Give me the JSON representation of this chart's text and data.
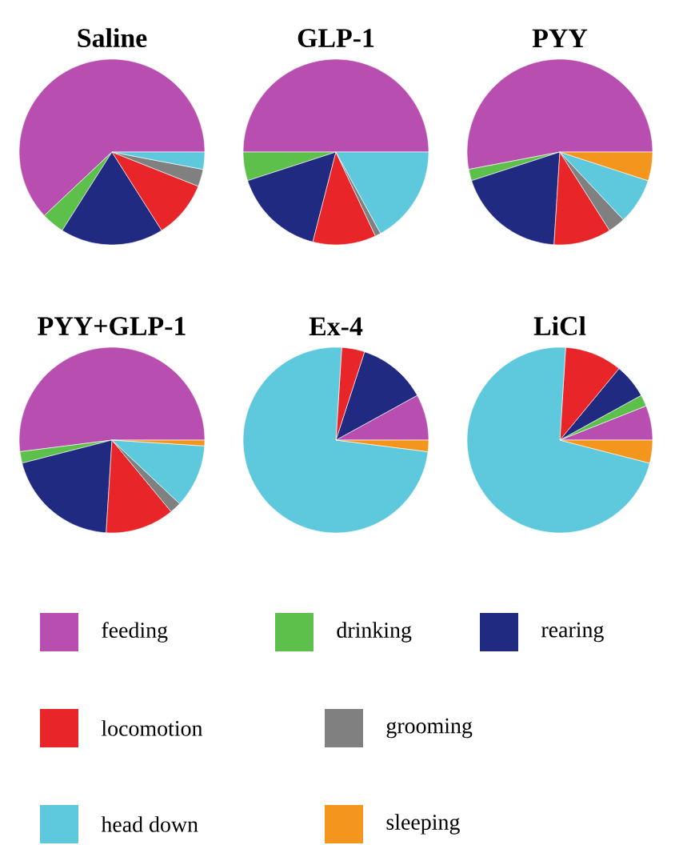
{
  "chart_data": [
    {
      "type": "pie",
      "title": "Saline",
      "categories": [
        "feeding",
        "drinking",
        "rearing",
        "locomotion",
        "grooming",
        "head down",
        "sleeping"
      ],
      "values": [
        62,
        4,
        18,
        10,
        3,
        3,
        0
      ],
      "colors": [
        "#b84fb0",
        "#5cc04a",
        "#1f2a80",
        "#e8262a",
        "#808080",
        "#5ec8dc",
        "#f4961e"
      ],
      "legend": "bottom"
    },
    {
      "type": "pie",
      "title": "GLP-1",
      "values": [
        50,
        5,
        16,
        11,
        1,
        17,
        0
      ],
      "colors": [
        "#b84fb0",
        "#5cc04a",
        "#1f2a80",
        "#e8262a",
        "#808080",
        "#5ec8dc",
        "#f4961e"
      ]
    },
    {
      "type": "pie",
      "title": "PYY",
      "values": [
        53,
        2,
        19,
        10,
        3,
        8,
        5
      ],
      "colors": [
        "#b84fb0",
        "#5cc04a",
        "#1f2a80",
        "#e8262a",
        "#808080",
        "#5ec8dc",
        "#f4961e"
      ]
    },
    {
      "type": "pie",
      "title": "PYY+GLP-1",
      "values": [
        52,
        2,
        20,
        12,
        2,
        11,
        1
      ],
      "colors": [
        "#b84fb0",
        "#5cc04a",
        "#1f2a80",
        "#e8262a",
        "#808080",
        "#5ec8dc",
        "#f4961e"
      ]
    },
    {
      "type": "pie",
      "title": "Ex-4",
      "values": [
        8,
        0,
        12,
        4,
        0,
        74,
        2
      ],
      "colors": [
        "#b84fb0",
        "#5cc04a",
        "#1f2a80",
        "#e8262a",
        "#808080",
        "#5ec8dc",
        "#f4961e"
      ]
    },
    {
      "type": "pie",
      "title": "LiCl",
      "values": [
        6,
        2,
        6,
        10,
        0,
        72,
        4
      ],
      "colors": [
        "#b84fb0",
        "#5cc04a",
        "#1f2a80",
        "#e8262a",
        "#808080",
        "#5ec8dc",
        "#f4961e"
      ]
    }
  ]
}
